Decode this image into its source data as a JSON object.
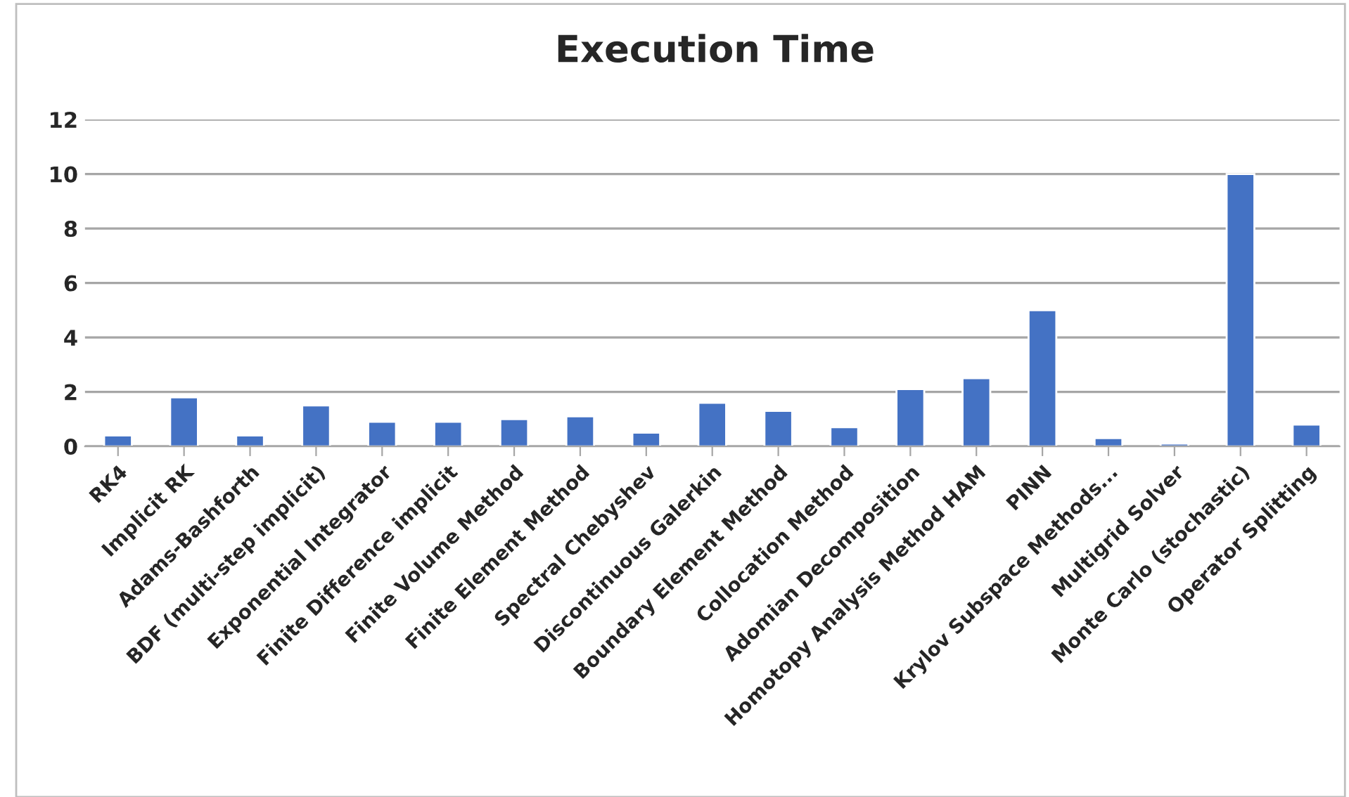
{
  "chart_data": {
    "type": "bar",
    "title": "Execution Time",
    "categories": [
      "RK4",
      "Implicit RK",
      "Adams-Bashforth",
      "BDF (multi-step implicit)",
      "Exponential Integrator",
      "Finite Difference implicit",
      "Finite Volume Method",
      "Finite Element Method",
      "Spectral Chebyshev",
      "Discontinuous Galerkin",
      "Boundary Element Method",
      "Collocation Method",
      "Adomian Decomposition",
      "Homotopy Analysis Method HAM",
      "PINN",
      "Krylov Subspace Methods...",
      "Multigrid Solver",
      "Monte Carlo (stochastic)",
      "Operator Splitting"
    ],
    "values": [
      0.4,
      1.8,
      0.4,
      1.5,
      0.9,
      0.9,
      1.0,
      1.1,
      0.5,
      1.6,
      1.3,
      0.7,
      2.1,
      2.5,
      5,
      0.3,
      0.1,
      10,
      0.8
    ],
    "color": "#4472c4",
    "ylim": [
      0,
      12
    ],
    "yticks": [
      0,
      2,
      4,
      6,
      8,
      10,
      12
    ],
    "grid": "y",
    "legend": false
  }
}
